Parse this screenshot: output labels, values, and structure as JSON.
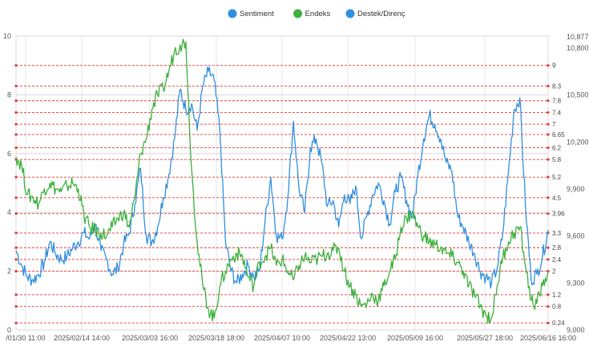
{
  "chart_data": {
    "type": "line",
    "legend_position": "top-center",
    "grid": true,
    "series": [
      {
        "name": "Sentiment",
        "axis": "left",
        "color": "#2f8fe0",
        "values": [
          2.7,
          2.2,
          1.8,
          1.7,
          1.9,
          2.3,
          3.0,
          2.6,
          2.4,
          2.5,
          2.8,
          3.0,
          3.3,
          3.1,
          3.6,
          2.7,
          2.4,
          1.9,
          2.1,
          2.9,
          3.3,
          4.3,
          5.5,
          3.2,
          3.0,
          3.5,
          4.5,
          5.3,
          6.5,
          8.2,
          7.5,
          7.7,
          6.8,
          8.3,
          8.8,
          8.5,
          6.8,
          3.0,
          2.0,
          1.6,
          1.9,
          2.2,
          1.8,
          2.0,
          3.7,
          5.2,
          3.2,
          3.1,
          4.5,
          7.1,
          4.8,
          4.0,
          6.2,
          6.5,
          5.7,
          4.2,
          4.4,
          3.5,
          4.6,
          4.3,
          4.9,
          3.1,
          3.9,
          4.6,
          5.0,
          4.4,
          3.6,
          4.7,
          5.2,
          4.4,
          3.8,
          5.3,
          6.5,
          7.3,
          7.0,
          6.5,
          5.7,
          5.4,
          3.9,
          3.5,
          3.0,
          2.6,
          2.0,
          1.8,
          1.6,
          2.1,
          3.3,
          5.4,
          7.5,
          7.9,
          4.2,
          1.7,
          1.9,
          2.5,
          3.4
        ]
      },
      {
        "name": "Endeks",
        "axis": "left",
        "color": "#3db03d",
        "values": [
          5.9,
          5.6,
          4.6,
          4.5,
          4.3,
          4.8,
          5.0,
          4.8,
          4.7,
          4.9,
          5.0,
          4.8,
          3.9,
          3.5,
          3.4,
          3.3,
          3.2,
          3.5,
          3.8,
          4.0,
          3.5,
          4.5,
          6.0,
          6.5,
          7.5,
          8.0,
          8.2,
          8.8,
          9.5,
          9.7,
          9.8,
          5.5,
          3.0,
          1.5,
          0.7,
          0.4,
          1.5,
          2.0,
          2.4,
          2.6,
          2.5,
          1.8,
          1.5,
          2.3,
          2.5,
          2.8,
          2.2,
          2.4,
          2.0,
          1.7,
          2.2,
          2.5,
          2.3,
          2.4,
          2.5,
          2.6,
          2.7,
          2.8,
          2.0,
          1.5,
          1.2,
          0.8,
          0.9,
          1.2,
          1.0,
          1.5,
          2.0,
          2.4,
          3.5,
          3.8,
          4.0,
          3.5,
          3.2,
          3.0,
          2.9,
          2.8,
          2.6,
          2.5,
          2.3,
          2.0,
          1.5,
          1.2,
          0.8,
          0.5,
          0.4,
          1.5,
          2.5,
          3.0,
          3.3,
          3.5,
          2.2,
          1.0,
          0.9,
          1.5,
          2.0
        ]
      },
      {
        "name": "Destek/Direnç",
        "axis": "left",
        "color": "#2f8fe0",
        "levels": [
          0.24,
          0.8,
          1.2,
          2,
          2.4,
          2.8,
          3.3,
          3.96,
          4.5,
          5.2,
          5.8,
          6.2,
          6.65,
          7,
          7.4,
          7.8,
          8.3,
          9
        ]
      }
    ],
    "x_tick_labels": [
      "/01/30 11:00",
      "2025/02/14 14:00",
      "2025/03/03 16:00",
      "2025/03/18 18:00",
      "2025/04/07 10:00",
      "2025/04/22 13:00",
      "2025/05/09 16:00",
      "2025/05/27 18:00",
      "2025/06/16 16:00"
    ],
    "y_left": {
      "min": 0,
      "max": 10,
      "ticks": [
        0,
        2,
        4,
        6,
        8,
        10
      ]
    },
    "y_right": {
      "min": 9000,
      "max": 10877,
      "ticks": [
        "9,000",
        "9,300",
        "9,600",
        "9,900",
        "10,200",
        "10,500",
        "10,800",
        "10,877"
      ]
    },
    "level_labels": [
      "0.24",
      "0.8",
      "1.2",
      "2",
      "2.4",
      "2.8",
      "3.3",
      "3.96",
      "4.5",
      "5.2",
      "5.8",
      "6.2",
      "6.65",
      "7",
      "7.4",
      "7.8",
      "8.3",
      "9"
    ]
  }
}
